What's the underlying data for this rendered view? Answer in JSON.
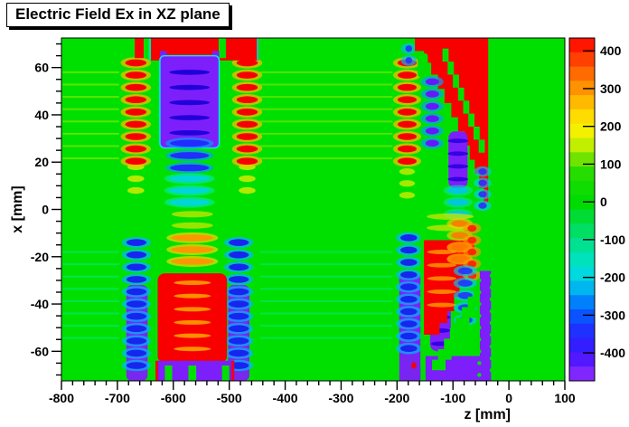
{
  "title": "Electric Field Ex in XZ plane",
  "axes": {
    "x_label": "z [mm]",
    "y_label": "x [mm]",
    "x_ticks": [
      -800,
      -700,
      -600,
      -500,
      -400,
      -300,
      -200,
      -100,
      0,
      100
    ],
    "x_minor_step": 20,
    "y_ticks": [
      -60,
      -40,
      -20,
      0,
      20,
      40,
      60
    ],
    "y_minor_step": 5
  },
  "colorbar": {
    "ticks": [
      400,
      300,
      200,
      100,
      0,
      -100,
      -200,
      -300,
      -400
    ],
    "range": [
      -474,
      434
    ],
    "stops": [
      [
        434,
        "#ff0000"
      ],
      [
        340,
        "#ff6a00"
      ],
      [
        250,
        "#ffc800"
      ],
      [
        200,
        "#fff200"
      ],
      [
        160,
        "#d8f000"
      ],
      [
        120,
        "#7ce600"
      ],
      [
        70,
        "#1ddc00"
      ],
      [
        0,
        "#00dc00"
      ],
      [
        -60,
        "#00dc50"
      ],
      [
        -120,
        "#00e298"
      ],
      [
        -180,
        "#00e2d8"
      ],
      [
        -230,
        "#00b4f0"
      ],
      [
        -285,
        "#0064ff"
      ],
      [
        -340,
        "#1e32ff"
      ],
      [
        -400,
        "#3c14ff"
      ],
      [
        -440,
        "#6e1eff"
      ],
      [
        -474,
        "#9632ff"
      ]
    ]
  },
  "chart_data": {
    "type": "heatmap",
    "title": "Electric Field Ex in XZ plane",
    "xlabel": "z [mm]",
    "ylabel": "x [mm]",
    "x_range": [
      -800,
      100
    ],
    "y_range": [
      -72.5,
      72.5
    ],
    "value_range": [
      -474,
      434
    ],
    "background_value": 0,
    "background_color": "#00e000",
    "regions": [
      "uniform Ex~0 (green) over most of the plane",
      "detector stack 1 at z=-690..-450: alternating +400 (red) stripe columns at z~-667 and z~-468 for x=+20..+62, purple block (Ex~-450) at z=-624..-518 x=+26..+65 with dark blue inner stripes, mirrored below x=0: blue/purple stripe columns, red block (+400) at z=-628..-504 x=-27..-65, purple band along bottom edge with green notches",
      "detector stack 2 at z=-200..-32: red stripe column at z~-182 x=+18..+62, large +400 red triangle z=-168..-37 near top with diagonal green channel, purple/blue blob chain below it; mirrored below x=0 with blue stripes, red region z=-152..-62, purple triangle/column ending at z=-32 with scalloped edge and purple bottom band"
    ],
    "features": [
      {
        "t": "hs",
        "z": [
          -798,
          -697
        ],
        "x": [
          58,
          18
        ],
        "step": 5.2,
        "c": "#c8f000",
        "o": 0.45,
        "h": 2
      },
      {
        "t": "hs",
        "z": [
          -445,
          -208
        ],
        "x": [
          58,
          18
        ],
        "step": 5.2,
        "c": "#c8f000",
        "o": 0.4,
        "h": 2
      },
      {
        "t": "hs",
        "z": [
          -798,
          -697
        ],
        "x": [
          -18,
          -58
        ],
        "step": 5.2,
        "c": "#00f0c0",
        "o": 0.4,
        "h": 2
      },
      {
        "t": "hs",
        "z": [
          -445,
          -208
        ],
        "x": [
          -18,
          -58
        ],
        "step": 5.2,
        "c": "#00f0c0",
        "o": 0.35,
        "h": 2
      },
      {
        "t": "blobs",
        "zc": -667,
        "zw": 30,
        "x": [
          18,
          6
        ],
        "step": 5,
        "core": "#ffee00",
        "o": 0.7
      },
      {
        "t": "blobs",
        "zc": -667,
        "zw": 38,
        "x": [
          62,
          20
        ],
        "step": 5.2,
        "core": "#f80000",
        "fringe": "#ffbb00"
      },
      {
        "t": "blobs",
        "zc": -468,
        "zw": 30,
        "x": [
          18,
          6
        ],
        "step": 5,
        "core": "#ffee00",
        "o": 0.7
      },
      {
        "t": "blobs",
        "zc": -468,
        "zw": 38,
        "x": [
          62,
          20
        ],
        "step": 5.2,
        "core": "#f80000",
        "fringe": "#ffbb00"
      },
      {
        "t": "rect",
        "z": [
          -640,
          -447
        ],
        "x": [
          72.5,
          63
        ],
        "c": "#f80000"
      },
      {
        "t": "rect",
        "z": [
          -669,
          -653
        ],
        "x": [
          72.5,
          64
        ],
        "c": "#f80000"
      },
      {
        "t": "rect",
        "z": [
          -644,
          -640
        ],
        "x": [
          72.5,
          63
        ],
        "c": "#00e6c8",
        "o": 0.8
      },
      {
        "t": "rect",
        "z": [
          -451,
          -447
        ],
        "x": [
          72.5,
          63
        ],
        "c": "#00e6c8",
        "o": 0.8
      },
      {
        "t": "rect",
        "z": [
          -519,
          -506
        ],
        "x": [
          72.5,
          64
        ],
        "c": "#00e000"
      },
      {
        "t": "rect",
        "z": [
          -624,
          -612
        ],
        "x": [
          67,
          58
        ],
        "c": "#7d1ffa"
      },
      {
        "t": "rect",
        "z": [
          -530,
          -518
        ],
        "x": [
          67,
          58
        ],
        "c": "#7d1ffa"
      },
      {
        "t": "rect",
        "z": [
          -624,
          -518
        ],
        "x": [
          65,
          26
        ],
        "c": "#7d1ffa",
        "r": 5,
        "sc": "#00e6ff"
      },
      {
        "t": "blobs",
        "zc": -571,
        "zw": 66,
        "x": [
          58,
          30
        ],
        "step": 6.4,
        "core": "#1c00d8",
        "o": 0.95,
        "flat": true
      },
      {
        "t": "blobs",
        "zc": -571,
        "zw": 70,
        "x": [
          28,
          15
        ],
        "step": 5.2,
        "core": "#2328ff",
        "fringe": "#00a0ff",
        "o": 0.95
      },
      {
        "t": "blobs",
        "zc": -571,
        "zw": 74,
        "x": [
          13,
          1
        ],
        "step": 5,
        "core": "#00d0ff",
        "fringe": "#00eec0",
        "o": 0.75
      },
      {
        "t": "rect",
        "z": [
          -684,
          -646
        ],
        "x": [
          -32,
          -72.5
        ],
        "c": "#7d1ffa",
        "o": 0.95,
        "r": 6
      },
      {
        "t": "rect",
        "z": [
          -502,
          -464
        ],
        "x": [
          -32,
          -72.5
        ],
        "c": "#7d1ffa",
        "o": 0.95,
        "r": 6
      },
      {
        "t": "blobs",
        "zc": -666,
        "zw": 36,
        "x": [
          -14,
          -66
        ],
        "step": 5.2,
        "core": "#1726ee",
        "fringe": "#00b4ff"
      },
      {
        "t": "blobs",
        "zc": -483,
        "zw": 36,
        "x": [
          -14,
          -66
        ],
        "step": 5.2,
        "core": "#1726ee",
        "fringe": "#00b4ff"
      },
      {
        "t": "blobs",
        "zc": -566,
        "zw": 74,
        "x": [
          -2,
          -11
        ],
        "step": 4.8,
        "core": "#cce600",
        "o": 0.75
      },
      {
        "t": "blobs",
        "zc": -566,
        "zw": 76,
        "x": [
          -12,
          -26
        ],
        "step": 5,
        "core": "#ff9500",
        "fringe": "#ffd900",
        "o": 0.95
      },
      {
        "t": "rect",
        "z": [
          -628,
          -504
        ],
        "x": [
          -27,
          -65
        ],
        "c": "#f80000",
        "r": 8
      },
      {
        "t": "blobs",
        "zc": -566,
        "zw": 60,
        "x": [
          -31,
          -59
        ],
        "step": 5.6,
        "core": "#ffb300",
        "o": 0.8,
        "flat": true
      },
      {
        "t": "rect",
        "z": [
          -631,
          -491
        ],
        "x": [
          -64,
          -72.5
        ],
        "c": "#7d1ffa"
      },
      {
        "t": "rect",
        "z": [
          -632,
          -627
        ],
        "x": [
          -64,
          -72.5
        ],
        "c": "#f80000",
        "o": 0.9
      },
      {
        "t": "rect",
        "z": [
          -496,
          -491
        ],
        "x": [
          -64,
          -72.5
        ],
        "c": "#f80000",
        "o": 0.9
      },
      {
        "t": "rect",
        "z": [
          -615,
          -602
        ],
        "x": [
          -66,
          -72.5
        ],
        "c": "#00e000"
      },
      {
        "t": "rect",
        "z": [
          -573,
          -559
        ],
        "x": [
          -66,
          -72.5
        ],
        "c": "#00e000"
      },
      {
        "t": "rect",
        "z": [
          -513,
          -500
        ],
        "x": [
          -66,
          -72.5
        ],
        "c": "#00e000"
      },
      {
        "t": "blobs",
        "zc": -182,
        "zw": 28,
        "x": [
          16,
          6
        ],
        "step": 5,
        "core": "#ffee00",
        "o": 0.65
      },
      {
        "t": "blobs",
        "zc": -182,
        "zw": 34,
        "x": [
          62,
          18
        ],
        "step": 5.2,
        "core": "#f80000",
        "fringe": "#ffbb00"
      },
      {
        "t": "blobs",
        "zc": -179,
        "zw": 12,
        "x": [
          68,
          63
        ],
        "step": 5,
        "core": "#2233ff",
        "fringe": "#00bbff",
        "o": 0.9
      },
      {
        "t": "poly",
        "c": "#f80000",
        "pts": [
          [
            -168,
            72.5
          ],
          [
            -37,
            72.5
          ],
          [
            -37,
            3
          ],
          [
            -45,
            3
          ],
          [
            -45,
            9
          ],
          [
            -53,
            9
          ],
          [
            -53,
            15
          ],
          [
            -61,
            15
          ],
          [
            -61,
            21
          ],
          [
            -70,
            21
          ],
          [
            -70,
            27
          ],
          [
            -80,
            27
          ],
          [
            -80,
            33
          ],
          [
            -91,
            33
          ],
          [
            -91,
            39
          ],
          [
            -103,
            39
          ],
          [
            -103,
            45
          ],
          [
            -115,
            45
          ],
          [
            -115,
            51
          ],
          [
            -127,
            51
          ],
          [
            -127,
            57
          ],
          [
            -139,
            57
          ],
          [
            -139,
            62
          ],
          [
            -152,
            62
          ],
          [
            -152,
            67
          ],
          [
            -168,
            67
          ]
        ]
      },
      {
        "t": "rect",
        "z": [
          -163,
          -145
        ],
        "x": [
          66,
          56
        ],
        "c": "#00e000",
        "r": 3
      },
      {
        "t": "stair",
        "a": [
          -128,
          68
        ],
        "b": [
          -54,
          24
        ],
        "w": 11,
        "n": 8,
        "c": "#00e000"
      },
      {
        "t": "blobs",
        "zc": -137,
        "zw": 24,
        "x": [
          54,
          28
        ],
        "step": 5.2,
        "core": "#6a11ff",
        "fringe": "#00a0ff",
        "o": 0.95
      },
      {
        "t": "rect",
        "z": [
          -108,
          -74
        ],
        "x": [
          33,
          9
        ],
        "c": "#7d1ffa",
        "r": 7
      },
      {
        "t": "blobs",
        "zc": -91,
        "zw": 30,
        "x": [
          29,
          12
        ],
        "step": 5.4,
        "core": "#2a00e0",
        "o": 0.9,
        "flat": true
      },
      {
        "t": "blobs",
        "zc": -91,
        "zw": 36,
        "x": [
          8,
          -6
        ],
        "step": 5,
        "core": "#00bfff",
        "fringe": "#00e6aa",
        "o": 0.8
      },
      {
        "t": "blobs",
        "zc": -47,
        "zw": 15,
        "x": [
          16,
          0
        ],
        "step": 4.8,
        "core": "#3322ff",
        "fringe": "#00ccff",
        "o": 0.85
      },
      {
        "t": "dots",
        "z": -35.5,
        "x": [
          4,
          64
        ],
        "step": 5,
        "r": 2.4,
        "c": "#00e000"
      },
      {
        "t": "rect",
        "z": [
          -196,
          -158
        ],
        "x": [
          -28,
          -72.5
        ],
        "c": "#7d1ffa",
        "o": 0.97
      },
      {
        "t": "blobs",
        "zc": -179,
        "zw": 30,
        "x": [
          -12,
          -60
        ],
        "step": 5.2,
        "core": "#1726ee",
        "fringe": "#00b4ff"
      },
      {
        "t": "rect",
        "z": [
          -158,
          -149
        ],
        "x": [
          -8,
          -66
        ],
        "c": "#00e000",
        "o": 0.95
      },
      {
        "t": "rect",
        "z": [
          -149,
          -32
        ],
        "x": [
          -62,
          -72.5
        ],
        "c": "#7d1ffa"
      },
      {
        "t": "rect",
        "z": [
          -141,
          -104
        ],
        "x": [
          -36,
          -60
        ],
        "c": "#7d1ffa",
        "r": 8
      },
      {
        "t": "blobs",
        "zc": -122,
        "zw": 28,
        "x": [
          -40,
          -57
        ],
        "step": 5.6,
        "core": "#2a00e0",
        "o": 0.9,
        "flat": true
      },
      {
        "t": "poly",
        "c": "#f80000",
        "pts": [
          [
            -152,
            -13
          ],
          [
            -62,
            -13
          ],
          [
            -62,
            -19
          ],
          [
            -70,
            -19
          ],
          [
            -70,
            -25
          ],
          [
            -78,
            -25
          ],
          [
            -78,
            -31
          ],
          [
            -88,
            -31
          ],
          [
            -88,
            -37
          ],
          [
            -98,
            -37
          ],
          [
            -98,
            -43
          ],
          [
            -110,
            -43
          ],
          [
            -110,
            -48
          ],
          [
            -124,
            -48
          ],
          [
            -124,
            -53
          ],
          [
            -152,
            -53
          ]
        ]
      },
      {
        "t": "blobs",
        "zc": -105,
        "zw": 84,
        "x": [
          -3,
          -11
        ],
        "step": 4.8,
        "core": "#cce600",
        "o": 0.75
      },
      {
        "t": "blobs",
        "zc": -88,
        "zw": 30,
        "x": [
          -6,
          -22
        ],
        "step": 5,
        "core": "#ff7700",
        "fringe": "#ffcc00",
        "o": 0.9
      },
      {
        "t": "blobs",
        "zc": -120,
        "zw": 46,
        "x": [
          -18,
          -44
        ],
        "step": 5.6,
        "core": "#ffb300",
        "o": 0.7,
        "flat": true
      },
      {
        "t": "blobs",
        "zc": -66,
        "zw": 16,
        "x": [
          -8,
          -28
        ],
        "step": 5,
        "core": "#ff2200",
        "fringe": "#ff9900",
        "o": 0.95
      },
      {
        "t": "blobs",
        "zc": -78,
        "zw": 26,
        "x": [
          -26,
          -48
        ],
        "step": 5.2,
        "core": "#2233ff",
        "fringe": "#00c8ff",
        "o": 0.9
      },
      {
        "t": "stair",
        "a": [
          -148,
          -68
        ],
        "b": [
          -52,
          -28
        ],
        "w": 24,
        "n": 9,
        "c": "#00e000"
      },
      {
        "t": "rect",
        "z": [
          -52,
          -32
        ],
        "x": [
          -26,
          -72.5
        ],
        "c": "#7d1ffa"
      },
      {
        "t": "dots",
        "z": -53,
        "x": [
          -30,
          -70
        ],
        "step": 5,
        "r": 2.2,
        "c": "#00e000"
      },
      {
        "t": "dots",
        "z": -30.5,
        "x": [
          -8,
          -70
        ],
        "step": 5,
        "r": 2.4,
        "c": "#00e000"
      },
      {
        "t": "blobs",
        "zc": -170,
        "zw": 7,
        "x": [
          -66,
          -70
        ],
        "step": 5,
        "core": "#f80000",
        "o": 0.9
      }
    ]
  }
}
